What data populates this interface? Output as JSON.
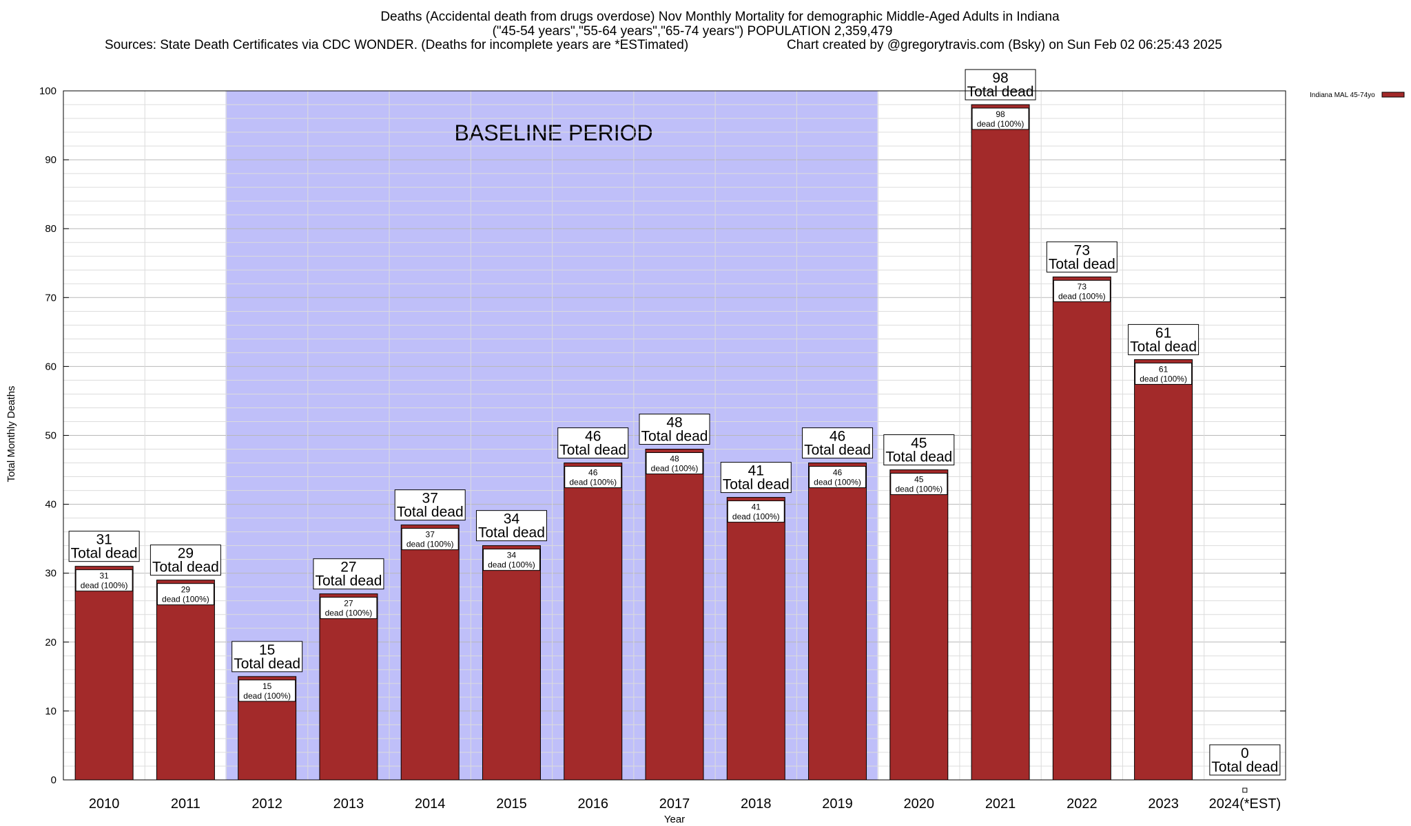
{
  "chart_data": {
    "type": "bar",
    "title_lines": [
      "Deaths (Accidental death from drugs overdose) Nov Monthly Mortality for demographic Middle-Aged Adults in Indiana",
      "(\"45-54 years\",\"55-64 years\",\"65-74 years\") POPULATION 2,359,479",
      "Sources: State Death Certificates via CDC WONDER. (Deaths for incomplete years are *ESTimated)",
      "Chart created by @gregorytravis.com (Bsky) on Sun Feb 02 06:25:43 2025"
    ],
    "xlabel": "Year",
    "ylabel": "Total Monthly Deaths",
    "ylim": [
      0,
      100
    ],
    "yticks": [
      "0",
      "10",
      "20",
      "30",
      "40",
      "50",
      "60",
      "70",
      "80",
      "90",
      "100"
    ],
    "categories": [
      "2010",
      "2011",
      "2012",
      "2013",
      "2014",
      "2015",
      "2016",
      "2017",
      "2018",
      "2019",
      "2020",
      "2021",
      "2022",
      "2023",
      "2024(*EST)"
    ],
    "series": [
      {
        "name": "Indiana MAL 45-74yo",
        "values": [
          31,
          29,
          15,
          27,
          37,
          34,
          46,
          48,
          41,
          46,
          45,
          98,
          73,
          61,
          0
        ],
        "value_labels": [
          "31",
          "29",
          "15",
          "27",
          "37",
          "34",
          "46",
          "48",
          "41",
          "46",
          "45",
          "98",
          "73",
          "61",
          "0"
        ]
      }
    ],
    "outer_label_suffix": "Total dead",
    "inner_label_suffix": "dead (100%)",
    "baseline_period": {
      "label": "BASELINE PERIOD",
      "from": "2012",
      "to": "2019"
    },
    "legend": {
      "placement": "top-right"
    },
    "grid": true,
    "colors": {
      "bar": "#a32a2a",
      "bar_stroke": "#000000",
      "baseline_fill": "#bfbff9",
      "grid_major": "#b8b8b8",
      "grid_minor": "#dcdcdc"
    }
  }
}
